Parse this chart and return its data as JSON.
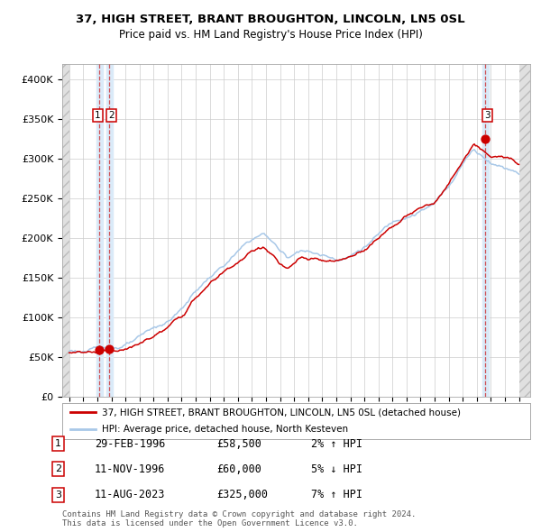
{
  "title1": "37, HIGH STREET, BRANT BROUGHTON, LINCOLN, LN5 0SL",
  "title2": "Price paid vs. HM Land Registry's House Price Index (HPI)",
  "legend_line1": "37, HIGH STREET, BRANT BROUGHTON, LINCOLN, LN5 0SL (detached house)",
  "legend_line2": "HPI: Average price, detached house, North Kesteven",
  "sale_entries": [
    {
      "num": "1",
      "date": "29-FEB-1996",
      "price_str": "£58,500",
      "hpi_str": "2% ↑ HPI",
      "year": 1996.16,
      "price": 58500
    },
    {
      "num": "2",
      "date": "11-NOV-1996",
      "price_str": "£60,000",
      "hpi_str": "5% ↓ HPI",
      "year": 1996.86,
      "price": 60000
    },
    {
      "num": "3",
      "date": "11-AUG-2023",
      "price_str": "£325,000",
      "hpi_str": "7% ↑ HPI",
      "year": 2023.61,
      "price": 325000
    }
  ],
  "footer": "Contains HM Land Registry data © Crown copyright and database right 2024.\nThis data is licensed under the Open Government Licence v3.0.",
  "hpi_color": "#a8c8e8",
  "price_color": "#cc0000",
  "bg_color": "#ffffff",
  "grid_color": "#cccccc",
  "shade_color": "#daeaf8",
  "hatch_color": "#d8d8d8",
  "ylim": [
    0,
    420000
  ],
  "yticks": [
    0,
    50000,
    100000,
    150000,
    200000,
    250000,
    300000,
    350000,
    400000
  ],
  "ytick_labels": [
    "£0",
    "£50K",
    "£100K",
    "£150K",
    "£200K",
    "£250K",
    "£300K",
    "£350K",
    "£400K"
  ],
  "xmin": 1993.5,
  "xmax": 2026.8,
  "plot_xmin": 1994.0,
  "plot_xmax": 2026.0,
  "xticks": [
    1994,
    1995,
    1996,
    1997,
    1998,
    1999,
    2000,
    2001,
    2002,
    2003,
    2004,
    2005,
    2006,
    2007,
    2008,
    2009,
    2010,
    2011,
    2012,
    2013,
    2014,
    2015,
    2016,
    2017,
    2018,
    2019,
    2020,
    2021,
    2022,
    2023,
    2024,
    2025,
    2026
  ]
}
